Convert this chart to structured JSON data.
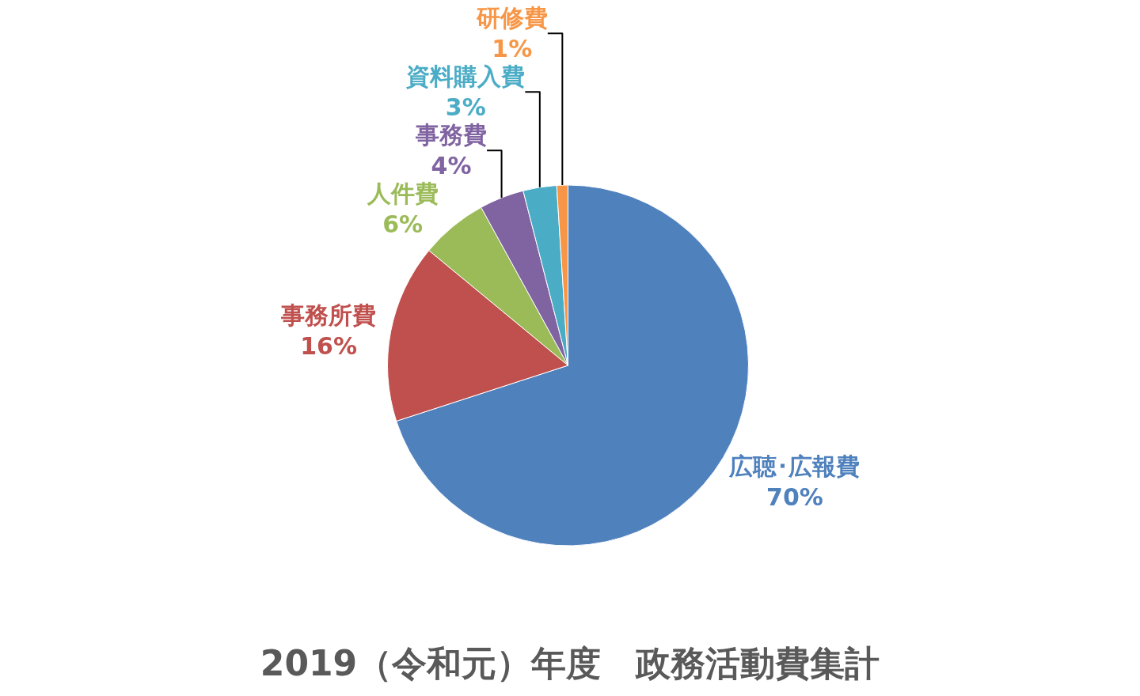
{
  "chart_data": {
    "type": "pie",
    "title": "2019（令和元）年度　政務活動費集計",
    "categories": [
      "広聴･広報費",
      "事務所費",
      "人件費",
      "事務費",
      "資料購入費",
      "研修費"
    ],
    "values": [
      70,
      16,
      6,
      4,
      3,
      1
    ],
    "value_labels": [
      "70%",
      "16%",
      "6%",
      "4%",
      "3%",
      "1%"
    ],
    "colors": [
      "#4f81bd",
      "#c0504d",
      "#9bbb59",
      "#8064a2",
      "#4bacc6",
      "#f79646"
    ],
    "legend": false
  }
}
